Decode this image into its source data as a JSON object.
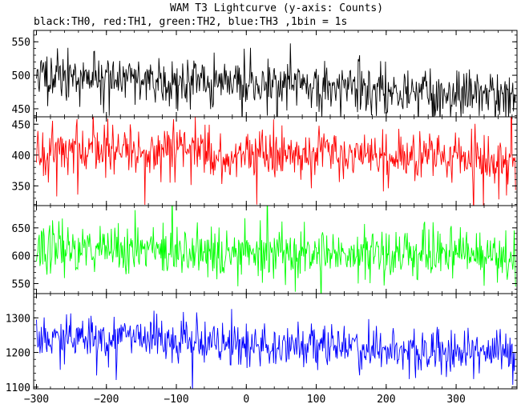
{
  "chart_data": {
    "type": "line",
    "title": "WAM T3 Lightcurve (y-axis: Counts)",
    "subtitle": "black:TH0, red:TH1, green:TH2, blue:TH3 ,1bin = 1s",
    "xlabel": "",
    "ylabel": "",
    "xlim": [
      -304,
      387
    ],
    "x_ticks": [
      -300,
      -200,
      -100,
      0,
      100,
      200,
      300
    ],
    "x_start": -300,
    "x_end": 385,
    "x_step": 1,
    "panels": [
      {
        "name": "TH0",
        "color": "#000000",
        "ylim": [
          438,
          567
        ],
        "y_ticks": [
          450,
          500,
          550
        ],
        "mean_start": 500,
        "mean_end": 470,
        "sigma": 18,
        "seed": 11
      },
      {
        "name": "TH1",
        "color": "#ff0000",
        "ylim": [
          318,
          462
        ],
        "y_ticks": [
          350,
          400,
          450
        ],
        "mean_start": 410,
        "mean_end": 395,
        "sigma": 20,
        "seed": 23
      },
      {
        "name": "TH2",
        "color": "#00ff00",
        "ylim": [
          532,
          690
        ],
        "y_ticks": [
          550,
          600,
          650
        ],
        "mean_start": 615,
        "mean_end": 602,
        "sigma": 23,
        "seed": 37
      },
      {
        "name": "TH3",
        "color": "#0000ff",
        "ylim": [
          1095,
          1370
        ],
        "y_ticks": [
          1100,
          1200,
          1300
        ],
        "mean_start": 1245,
        "mean_end": 1200,
        "sigma": 35,
        "seed": 53
      }
    ],
    "grid": false,
    "legend": "none"
  }
}
